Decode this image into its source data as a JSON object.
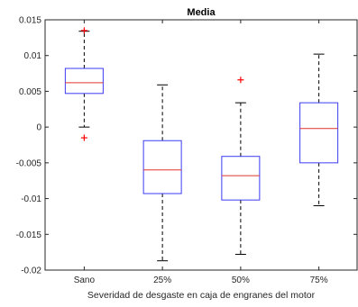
{
  "chart_data": {
    "type": "box",
    "title": "Media",
    "xlabel": "Severidad de desgaste en caja de engranes del motor",
    "ylabel": "",
    "ylim": [
      -0.02,
      0.015
    ],
    "yticks": [
      -0.02,
      -0.015,
      -0.01,
      -0.005,
      0,
      0.005,
      0.01,
      0.015
    ],
    "ytick_labels": [
      "-0.02",
      "-0.015",
      "-0.01",
      "-0.005",
      "0",
      "0.005",
      "0.01",
      "0.015"
    ],
    "categories": [
      "Sano",
      "25%",
      "50%",
      "75%"
    ],
    "boxes": [
      {
        "category": "Sano",
        "whisker_low": 0.0,
        "q1": 0.0047,
        "median": 0.0062,
        "q3": 0.0082,
        "whisker_high": 0.0134,
        "outliers": [
          0.0135,
          -0.0015
        ]
      },
      {
        "category": "25%",
        "whisker_low": -0.0187,
        "q1": -0.0093,
        "median": -0.006,
        "q3": -0.0019,
        "whisker_high": 0.0059,
        "outliers": []
      },
      {
        "category": "50%",
        "whisker_low": -0.0178,
        "q1": -0.0102,
        "median": -0.0068,
        "q3": -0.0041,
        "whisker_high": 0.0034,
        "outliers": [
          0.0066
        ]
      },
      {
        "category": "75%",
        "whisker_low": -0.011,
        "q1": -0.005,
        "median": -0.0002,
        "q3": 0.0034,
        "whisker_high": 0.0102,
        "outliers": []
      }
    ],
    "colors": {
      "box": "#3b3bf5",
      "median": "#e0342a",
      "whisker": "#000000",
      "outlier": "#ff0000",
      "axes": "#262626"
    },
    "grid": false,
    "legend": "none"
  }
}
